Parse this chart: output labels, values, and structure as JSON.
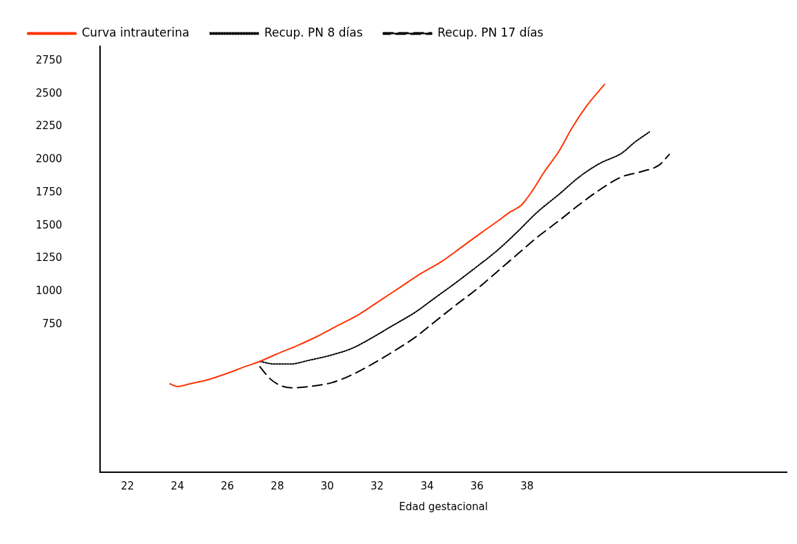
{
  "chart_data": {
    "type": "line",
    "xlabel": "Edad gestacional",
    "xlim": [
      20.9,
      48.4
    ],
    "xticks": [
      22,
      24,
      26,
      28,
      30,
      32,
      34,
      36,
      38
    ],
    "ylim": [
      -370,
      2860
    ],
    "yticks": [
      750,
      1000,
      1250,
      1500,
      1750,
      2000,
      2250,
      2500,
      2750
    ],
    "grid": false,
    "legend": "top left",
    "marker": "none",
    "series": [
      {
        "name": "Curva intrauterina",
        "color": "#ff3300",
        "line_style": "solid",
        "x": [
          23.7,
          24.0,
          24.5,
          25.2,
          26.0,
          26.7,
          27.3,
          27.9,
          28.8,
          29.6,
          30.4,
          31.3,
          32.1,
          32.9,
          33.7,
          34.6,
          35.4,
          36.2,
          36.8,
          37.3,
          37.8,
          38.2,
          38.7,
          39.3,
          39.8,
          40.4,
          41.1
        ],
        "values": [
          300,
          280,
          300,
          330,
          380,
          430,
          470,
          520,
          590,
          660,
          740,
          830,
          930,
          1030,
          1130,
          1230,
          1340,
          1450,
          1530,
          1600,
          1660,
          1760,
          1910,
          2070,
          2240,
          2410,
          2570
        ]
      },
      {
        "name": "Recup. PN 8 días",
        "color": "#000000",
        "line_style": "dotted",
        "x": [
          27.3,
          27.9,
          28.5,
          29.3,
          30.2,
          31.0,
          31.8,
          32.6,
          33.5,
          34.3,
          35.1,
          36.0,
          36.8,
          37.6,
          38.4,
          39.3,
          40.1,
          40.9,
          41.8,
          42.3,
          42.9
        ],
        "values": [
          470,
          450,
          450,
          480,
          520,
          570,
          650,
          740,
          840,
          950,
          1060,
          1190,
          1310,
          1450,
          1600,
          1740,
          1870,
          1970,
          2050,
          2130,
          2210
        ]
      },
      {
        "name": "Recup. PN 17 días",
        "color": "#000000",
        "line_style": "dashed",
        "x": [
          27.3,
          27.7,
          28.1,
          28.6,
          29.3,
          30.2,
          31.0,
          31.8,
          32.6,
          33.5,
          34.3,
          35.1,
          36.0,
          36.8,
          37.6,
          38.4,
          39.3,
          40.1,
          40.9,
          41.8,
          42.6,
          43.3,
          43.7
        ],
        "values": [
          430,
          340,
          290,
          270,
          280,
          310,
          370,
          450,
          540,
          650,
          770,
          890,
          1020,
          1150,
          1280,
          1410,
          1540,
          1660,
          1770,
          1870,
          1910,
          1960,
          2040
        ]
      }
    ]
  }
}
